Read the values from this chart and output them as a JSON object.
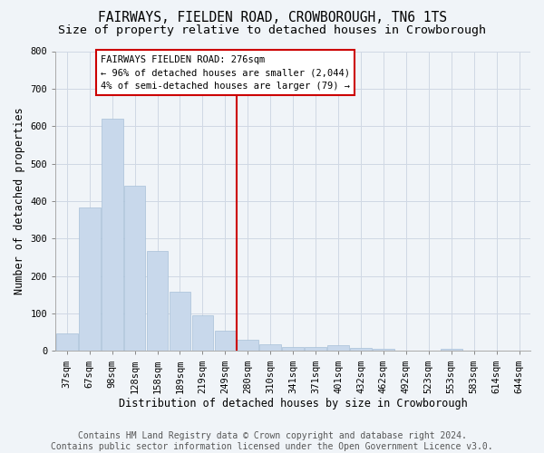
{
  "title": "FAIRWAYS, FIELDEN ROAD, CROWBOROUGH, TN6 1TS",
  "subtitle": "Size of property relative to detached houses in Crowborough",
  "xlabel": "Distribution of detached houses by size in Crowborough",
  "ylabel": "Number of detached properties",
  "categories": [
    "37sqm",
    "67sqm",
    "98sqm",
    "128sqm",
    "158sqm",
    "189sqm",
    "219sqm",
    "249sqm",
    "280sqm",
    "310sqm",
    "341sqm",
    "371sqm",
    "401sqm",
    "432sqm",
    "462sqm",
    "492sqm",
    "523sqm",
    "553sqm",
    "583sqm",
    "614sqm",
    "644sqm"
  ],
  "values": [
    48,
    382,
    621,
    440,
    268,
    157,
    96,
    55,
    30,
    18,
    11,
    11,
    15,
    8,
    5,
    0,
    0,
    7,
    0,
    0,
    0
  ],
  "bar_color": "#c8d8eb",
  "bar_edge_color": "#a8c0d8",
  "grid_color": "#d0d8e4",
  "background_color": "#f0f4f8",
  "property_label": "FAIRWAYS FIELDEN ROAD: 276sqm",
  "annotation_line1": "← 96% of detached houses are smaller (2,044)",
  "annotation_line2": "4% of semi-detached houses are larger (79) →",
  "vline_color": "#cc0000",
  "vline_bin_index": 8,
  "annotation_box_facecolor": "#ffffff",
  "annotation_box_edge": "#cc0000",
  "footer1": "Contains HM Land Registry data © Crown copyright and database right 2024.",
  "footer2": "Contains public sector information licensed under the Open Government Licence v3.0.",
  "ylim": [
    0,
    800
  ],
  "yticks": [
    0,
    100,
    200,
    300,
    400,
    500,
    600,
    700,
    800
  ],
  "title_fontsize": 10.5,
  "subtitle_fontsize": 9.5,
  "axis_fontsize": 8.5,
  "tick_fontsize": 7.5,
  "annotation_fontsize": 7.5,
  "footer_fontsize": 7
}
